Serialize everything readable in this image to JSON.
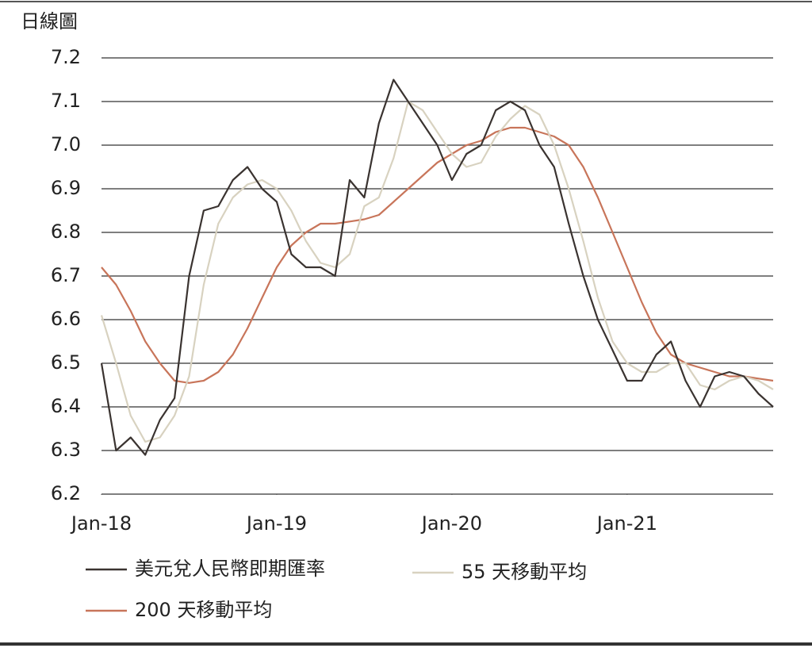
{
  "chart_data": {
    "type": "line",
    "title": "日線圖",
    "legend": "bottom",
    "grid": true,
    "x": [
      "2018-01",
      "2018-02",
      "2018-03",
      "2018-04",
      "2018-05",
      "2018-06",
      "2018-07",
      "2018-08",
      "2018-09",
      "2018-10",
      "2018-11",
      "2018-12",
      "2019-01",
      "2019-02",
      "2019-03",
      "2019-04",
      "2019-05",
      "2019-06",
      "2019-07",
      "2019-08",
      "2019-09",
      "2019-10",
      "2019-11",
      "2019-12",
      "2020-01",
      "2020-02",
      "2020-03",
      "2020-04",
      "2020-05",
      "2020-06",
      "2020-07",
      "2020-08",
      "2020-09",
      "2020-10",
      "2020-11",
      "2020-12",
      "2021-01",
      "2021-02",
      "2021-03",
      "2021-04",
      "2021-05",
      "2021-06",
      "2021-07",
      "2021-08",
      "2021-09",
      "2021-10",
      "2021-11"
    ],
    "xlim": [
      "2018-01",
      "2021-11"
    ],
    "xticks": [
      {
        "value": "2018-01",
        "label": "Jan-18"
      },
      {
        "value": "2019-01",
        "label": "Jan-19"
      },
      {
        "value": "2020-01",
        "label": "Jan-20"
      },
      {
        "value": "2021-01",
        "label": "Jan-21"
      }
    ],
    "ylim": [
      6.2,
      7.2
    ],
    "yticks": [
      6.2,
      6.3,
      6.4,
      6.5,
      6.6,
      6.7,
      6.8,
      6.9,
      {
        "value": 7,
        "label": "7.0"
      },
      7.1,
      7.2
    ],
    "series": [
      {
        "name": "美元兌人民幣即期匯率",
        "color": "#3a3330",
        "values": [
          6.5,
          6.3,
          6.33,
          6.29,
          6.37,
          6.42,
          6.7,
          6.85,
          6.86,
          6.92,
          6.95,
          6.9,
          6.87,
          6.75,
          6.72,
          6.72,
          6.7,
          6.92,
          6.88,
          7.05,
          7.15,
          7.1,
          7.05,
          7.0,
          6.92,
          6.98,
          7.0,
          7.08,
          7.1,
          7.08,
          7.0,
          6.95,
          6.82,
          6.7,
          6.6,
          6.53,
          6.46,
          6.46,
          6.52,
          6.55,
          6.46,
          6.4,
          6.47,
          6.48,
          6.47,
          6.43,
          6.4
        ]
      },
      {
        "name": "55 天移動平均",
        "color": "#d8d2c0",
        "values": [
          6.61,
          6.5,
          6.38,
          6.32,
          6.33,
          6.38,
          6.47,
          6.68,
          6.82,
          6.88,
          6.91,
          6.92,
          6.9,
          6.85,
          6.78,
          6.73,
          6.72,
          6.75,
          6.86,
          6.88,
          6.97,
          7.1,
          7.08,
          7.03,
          6.98,
          6.95,
          6.96,
          7.02,
          7.06,
          7.09,
          7.07,
          7.0,
          6.9,
          6.78,
          6.65,
          6.55,
          6.5,
          6.48,
          6.48,
          6.5,
          6.5,
          6.45,
          6.44,
          6.46,
          6.47,
          6.46,
          6.44
        ]
      },
      {
        "name": "200 天移動平均",
        "color": "#c8755a",
        "values": [
          6.72,
          6.68,
          6.62,
          6.55,
          6.5,
          6.46,
          6.455,
          6.46,
          6.48,
          6.52,
          6.58,
          6.65,
          6.72,
          6.77,
          6.8,
          6.82,
          6.82,
          6.825,
          6.83,
          6.84,
          6.87,
          6.9,
          6.93,
          6.96,
          6.98,
          7.0,
          7.01,
          7.03,
          7.04,
          7.04,
          7.03,
          7.02,
          7.0,
          6.95,
          6.88,
          6.8,
          6.72,
          6.64,
          6.57,
          6.52,
          6.5,
          6.49,
          6.48,
          6.47,
          6.47,
          6.465,
          6.46
        ]
      }
    ]
  }
}
